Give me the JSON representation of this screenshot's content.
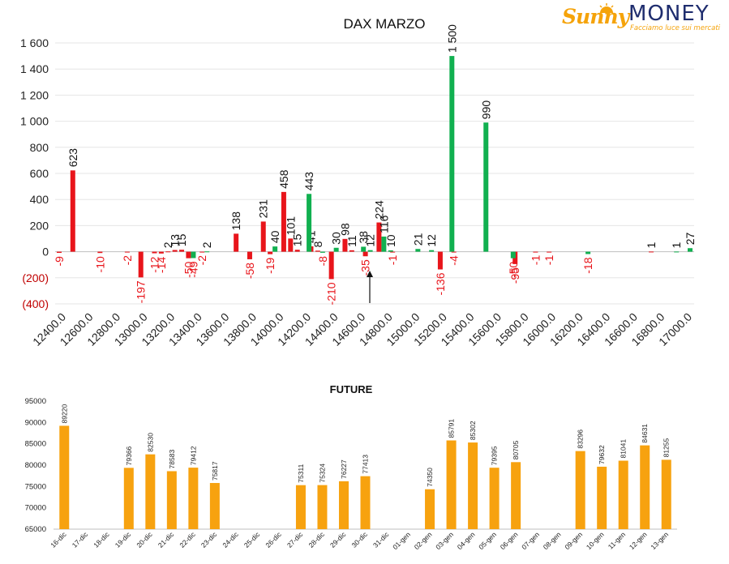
{
  "logo": {
    "brand_part1": "Sunny",
    "brand_part2": "MONEY",
    "tagline": "Facciamo luce sui mercati"
  },
  "colors": {
    "red": "#e8151b",
    "green": "#11b050",
    "orange": "#f7a20f",
    "grid": "#e6e6e6",
    "axis": "#bfbfbf"
  },
  "chart_data": [
    {
      "type": "bar",
      "title": "DAX MARZO",
      "xlabel": "",
      "ylabel": "",
      "ylim": [
        -400,
        1600
      ],
      "y_ticks": [
        {
          "v": 1600,
          "label": "1 600"
        },
        {
          "v": 1400,
          "label": "1 400"
        },
        {
          "v": 1200,
          "label": "1 200"
        },
        {
          "v": 1000,
          "label": "1 000"
        },
        {
          "v": 800,
          "label": "800"
        },
        {
          "v": 600,
          "label": "600"
        },
        {
          "v": 400,
          "label": "400"
        },
        {
          "v": 200,
          "label": "200"
        },
        {
          "v": 0,
          "label": "0"
        },
        {
          "v": -200,
          "label": "(200)"
        },
        {
          "v": -400,
          "label": "(400)"
        }
      ],
      "x_tick_labels": [
        "12400.0",
        "12600.0",
        "12800.0",
        "13000.0",
        "13200.0",
        "13400.0",
        "13600.0",
        "13800.0",
        "14000.0",
        "14200.0",
        "14400.0",
        "14600.0",
        "14800.0",
        "15000.0",
        "15200.0",
        "15400.0",
        "15600.0",
        "15800.0",
        "16000.0",
        "16200.0",
        "16400.0",
        "16600.0",
        "16800.0",
        "17000.0"
      ],
      "grid": true,
      "legend": "none",
      "series": [
        {
          "color": "red",
          "points": [
            {
              "x": 12400,
              "value": -9
            },
            {
              "x": 12500,
              "value": 623
            },
            {
              "x": 12700,
              "value": -10
            },
            {
              "x": 12900,
              "value": -2
            },
            {
              "x": 13000,
              "value": -197
            },
            {
              "x": 13100,
              "value": -12
            },
            {
              "x": 13150,
              "value": -14
            },
            {
              "x": 13200,
              "value": 2
            },
            {
              "x": 13250,
              "value": 13
            },
            {
              "x": 13300,
              "value": 15
            },
            {
              "x": 13350,
              "value": -50
            },
            {
              "x": 13450,
              "value": -2
            },
            {
              "x": 13700,
              "value": 138
            },
            {
              "x": 13800,
              "value": -58
            },
            {
              "x": 13900,
              "value": 231
            },
            {
              "x": 13950,
              "value": -19
            },
            {
              "x": 14050,
              "value": 458
            },
            {
              "x": 14100,
              "value": 101
            },
            {
              "x": 14150,
              "value": 15
            },
            {
              "x": 14250,
              "value": 41
            },
            {
              "x": 14300,
              "value": 8
            },
            {
              "x": 14400,
              "value": -210
            },
            {
              "x": 14500,
              "value": 98
            },
            {
              "x": 14550,
              "value": 11
            },
            {
              "x": 14650,
              "value": -35
            },
            {
              "x": 14750,
              "value": 224
            },
            {
              "x": 14850,
              "value": -1
            },
            {
              "x": 15200,
              "value": -136
            },
            {
              "x": 15300,
              "value": -4
            },
            {
              "x": 15750,
              "value": -95
            },
            {
              "x": 15900,
              "value": -1
            },
            {
              "x": 16000,
              "value": -1
            },
            {
              "x": 16750,
              "value": 1
            }
          ]
        },
        {
          "color": "green",
          "points": [
            {
              "x": 13350,
              "value": -49
            },
            {
              "x": 13450,
              "value": 2
            },
            {
              "x": 13950,
              "value": 40
            },
            {
              "x": 14200,
              "value": 443
            },
            {
              "x": 14300,
              "value": -8
            },
            {
              "x": 14400,
              "value": 30
            },
            {
              "x": 14600,
              "value": 38
            },
            {
              "x": 14650,
              "value": 12
            },
            {
              "x": 14750,
              "value": 116
            },
            {
              "x": 14800,
              "value": 10
            },
            {
              "x": 15000,
              "value": 21
            },
            {
              "x": 15100,
              "value": 12
            },
            {
              "x": 15250,
              "value": 1500
            },
            {
              "x": 15500,
              "value": 990
            },
            {
              "x": 15700,
              "value": -50
            },
            {
              "x": 16250,
              "value": -18
            },
            {
              "x": 16900,
              "value": 1
            },
            {
              "x": 17000,
              "value": 27
            }
          ]
        }
      ],
      "annotation": {
        "x": 14700,
        "symbol": "arrow-up"
      }
    },
    {
      "type": "bar",
      "title": "FUTURE",
      "xlabel": "",
      "ylabel": "",
      "ylim": [
        65000,
        95000
      ],
      "y_ticks": [
        95000,
        90000,
        85000,
        80000,
        75000,
        70000,
        65000
      ],
      "grid": false,
      "legend": "none",
      "color": "orange",
      "categories": [
        "16-dic",
        "17-dic",
        "18-dic",
        "19-dic",
        "20-dic",
        "21-dic",
        "22-dic",
        "23-dic",
        "24-dic",
        "25-dic",
        "26-dic",
        "27-dic",
        "28-dic",
        "29-dic",
        "30-dic",
        "31-dic",
        "01-gen",
        "02-gen",
        "03-gen",
        "04-gen",
        "05-gen",
        "06-gen",
        "07-gen",
        "08-gen",
        "09-gen",
        "10-gen",
        "11-gen",
        "12-gen",
        "13-gen"
      ],
      "values": [
        89220,
        null,
        null,
        79366,
        82530,
        78583,
        79412,
        75817,
        null,
        null,
        null,
        75311,
        75324,
        76227,
        77413,
        null,
        null,
        74350,
        85791,
        85302,
        79395,
        80705,
        null,
        null,
        83296,
        79632,
        81041,
        84631,
        81255
      ]
    }
  ]
}
